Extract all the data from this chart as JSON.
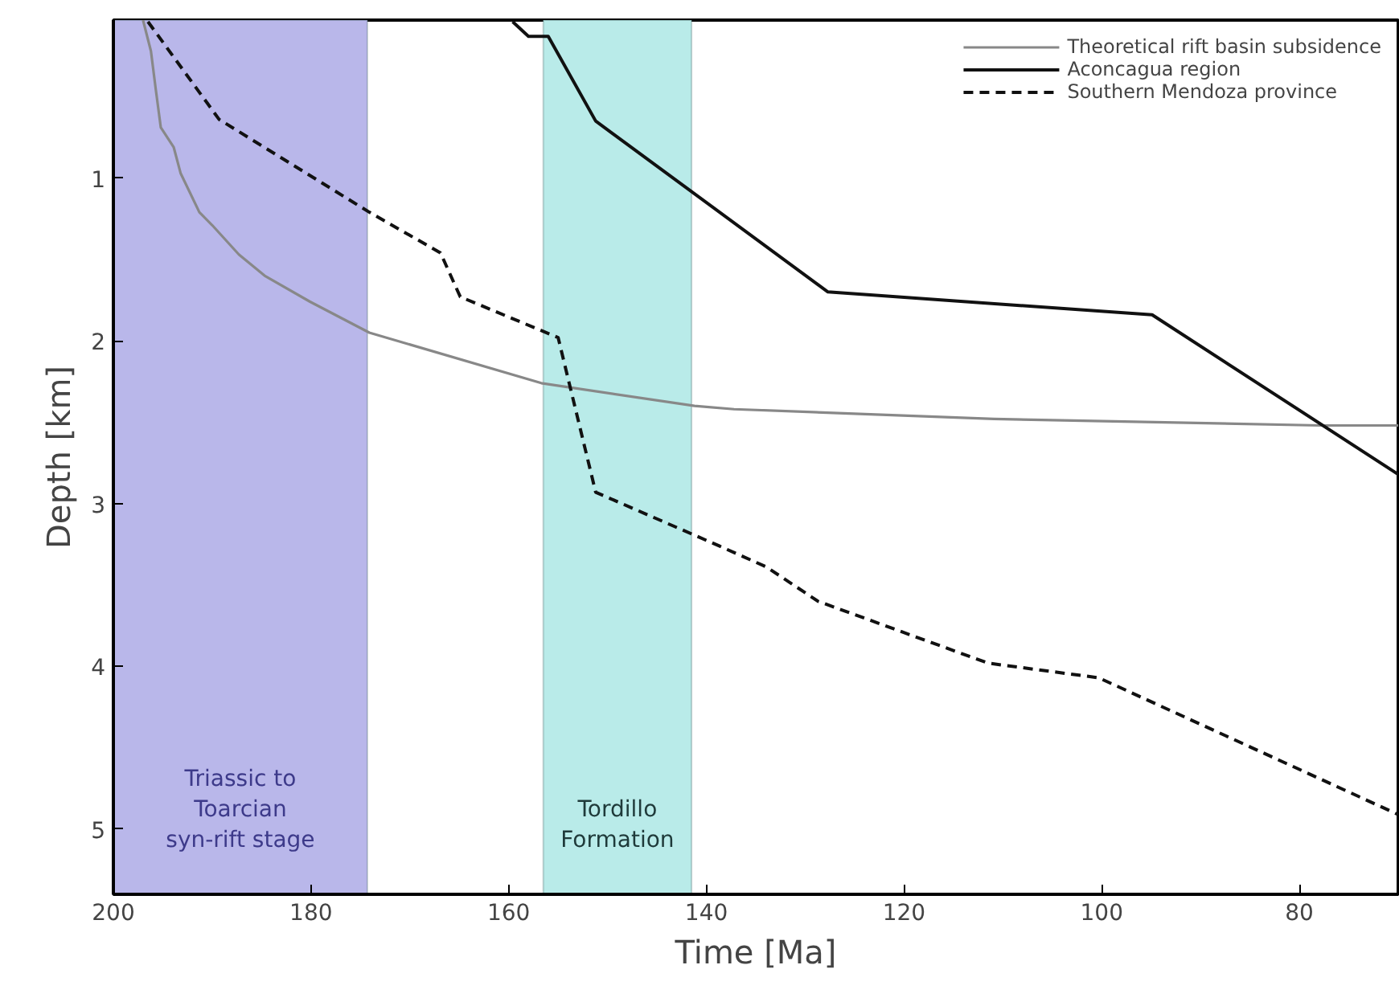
{
  "chart_data": {
    "type": "line",
    "xlabel": "Time [Ma]",
    "ylabel": "Depth [km]",
    "xlim": [
      200,
      70
    ],
    "ylim": [
      5.4,
      0.03
    ],
    "xticks": [
      200,
      180,
      160,
      140,
      120,
      100,
      80
    ],
    "yticks": [
      1,
      2,
      3,
      4,
      5
    ],
    "grid": false,
    "legend": "top right",
    "bands": [
      {
        "axis": "x",
        "from": 200,
        "to": 174.3,
        "label": "Triassic to\nToarcian\nsyn-rift stage",
        "color": "#b9b7ea"
      },
      {
        "axis": "x",
        "from": 156.5,
        "to": 141.5,
        "label": "Tordillo\nFormation",
        "color": "#b9ebe9"
      }
    ],
    "series": [
      {
        "name": "Theoretical rift basin subsidence",
        "color": "#888888",
        "line_style": "solid",
        "x": [
          197,
          196.2,
          195.7,
          195.2,
          193.9,
          193.2,
          191.3,
          190.0,
          187.3,
          184.7,
          180.1,
          174.1,
          156.7,
          141.2,
          137.2,
          110.9,
          77.9,
          70
        ],
        "values": [
          0.03,
          0.22,
          0.46,
          0.69,
          0.81,
          0.97,
          1.21,
          1.29,
          1.47,
          1.6,
          1.76,
          1.95,
          2.26,
          2.4,
          2.42,
          2.48,
          2.52,
          2.52
        ]
      },
      {
        "name": "Aconcagua region",
        "color": "#111111",
        "line_style": "solid",
        "x": [
          159.6,
          158.0,
          156.0,
          151.2,
          127.7,
          94.9,
          70
        ],
        "values": [
          0.04,
          0.13,
          0.13,
          0.65,
          1.7,
          1.84,
          2.82
        ]
      },
      {
        "name": "Southern Mendoza province",
        "color": "#111111",
        "line_style": "dashed",
        "x": [
          196.5,
          189.3,
          174.1,
          166.9,
          164.9,
          155.0,
          151.2,
          138.7,
          133.9,
          128.7,
          111.5,
          100.3,
          70
        ],
        "values": [
          0.04,
          0.64,
          1.21,
          1.46,
          1.73,
          1.98,
          2.93,
          3.26,
          3.39,
          3.6,
          3.98,
          4.07,
          4.91
        ]
      }
    ]
  }
}
